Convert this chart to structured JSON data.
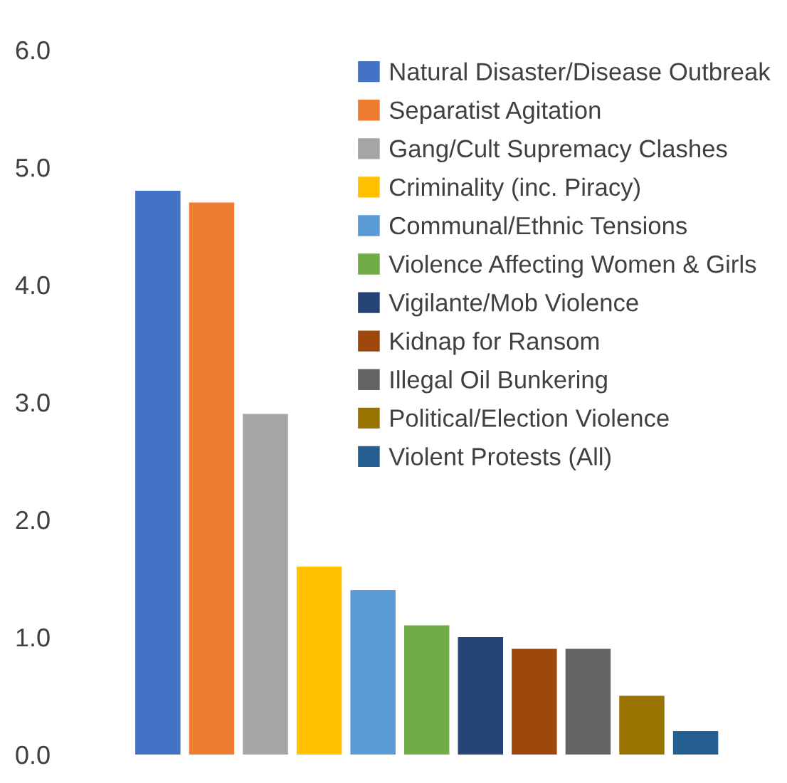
{
  "chart_data": {
    "type": "bar",
    "categories": [
      null
    ],
    "series": [
      {
        "name": "Natural Disaster/Disease Outbreak",
        "color": "#4472c4",
        "values": [
          4.8
        ]
      },
      {
        "name": "Separatist Agitation",
        "color": "#ed7d31",
        "values": [
          4.7
        ]
      },
      {
        "name": "Gang/Cult Supremacy Clashes",
        "color": "#a5a5a5",
        "values": [
          2.9
        ]
      },
      {
        "name": "Criminality (inc. Piracy)",
        "color": "#ffc000",
        "values": [
          1.6
        ]
      },
      {
        "name": "Communal/Ethnic Tensions",
        "color": "#5b9bd5",
        "values": [
          1.4
        ]
      },
      {
        "name": "Violence Affecting Women & Girls",
        "color": "#70ad47",
        "values": [
          1.1
        ]
      },
      {
        "name": "Vigilante/Mob Violence",
        "color": "#264478",
        "values": [
          1.0
        ]
      },
      {
        "name": "Kidnap for Ransom",
        "color": "#9e480e",
        "values": [
          0.9
        ]
      },
      {
        "name": "Illegal Oil Bunkering",
        "color": "#636363",
        "values": [
          0.9
        ]
      },
      {
        "name": "Political/Election Violence",
        "color": "#997300",
        "values": [
          0.5
        ]
      },
      {
        "name": "Violent Protests (All)",
        "color": "#255e91",
        "values": [
          0.2
        ]
      }
    ],
    "ylim": [
      0,
      6
    ],
    "yticks": [
      {
        "value": 0,
        "label": "0.0"
      },
      {
        "value": 1,
        "label": "1.0"
      },
      {
        "value": 2,
        "label": "2.0"
      },
      {
        "value": 3,
        "label": "3.0"
      },
      {
        "value": 4,
        "label": "4.0"
      },
      {
        "value": 5,
        "label": "5.0"
      },
      {
        "value": 6,
        "label": "6.0"
      }
    ],
    "grid": false,
    "legend": "top right"
  }
}
